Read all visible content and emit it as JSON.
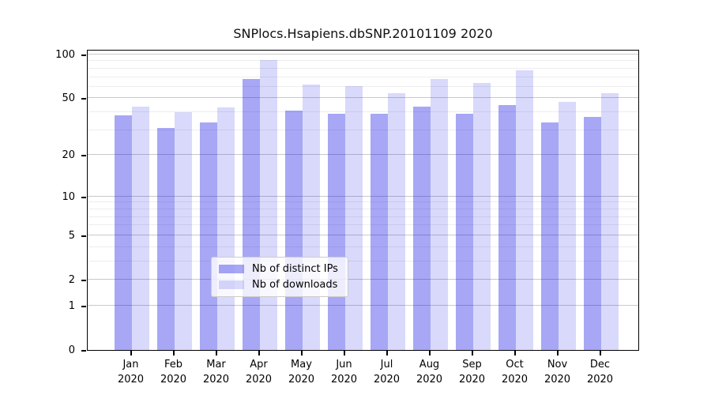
{
  "chart_data": {
    "type": "bar",
    "title": "SNPlocs.Hsapiens.dbSNP.20101109 2020",
    "xlabel": "",
    "ylabel": "",
    "year_label": "2020",
    "categories": [
      "Jan",
      "Feb",
      "Mar",
      "Apr",
      "May",
      "Jun",
      "Jul",
      "Aug",
      "Sep",
      "Oct",
      "Nov",
      "Dec"
    ],
    "series": [
      {
        "name": "Nb of distinct IPs",
        "color": "rgba(0,0,230,0.345)",
        "approx_hex": "#a8a8f7",
        "values": [
          38,
          31,
          34,
          68,
          41,
          39,
          39,
          44,
          39,
          45,
          34,
          37
        ]
      },
      {
        "name": "Nb of downloads",
        "color": "rgba(0,0,230,0.15)",
        "approx_hex": "#dadafb",
        "values": [
          44,
          40,
          43,
          92,
          62,
          61,
          54,
          68,
          64,
          78,
          47,
          54
        ]
      }
    ],
    "yscale": "log1p",
    "ylim": [
      0,
      100
    ],
    "yticks": [
      0,
      1,
      2,
      5,
      10,
      20,
      50,
      100
    ],
    "minor_gridlines": [
      3,
      4,
      6,
      7,
      8,
      9,
      30,
      40,
      60,
      70,
      80,
      90
    ],
    "grid": "on",
    "legend_position": "inside-bottom-center",
    "axis_color": "#000000",
    "major_grid_color": "#c9c9c9",
    "minor_grid_color": "#ededed"
  }
}
